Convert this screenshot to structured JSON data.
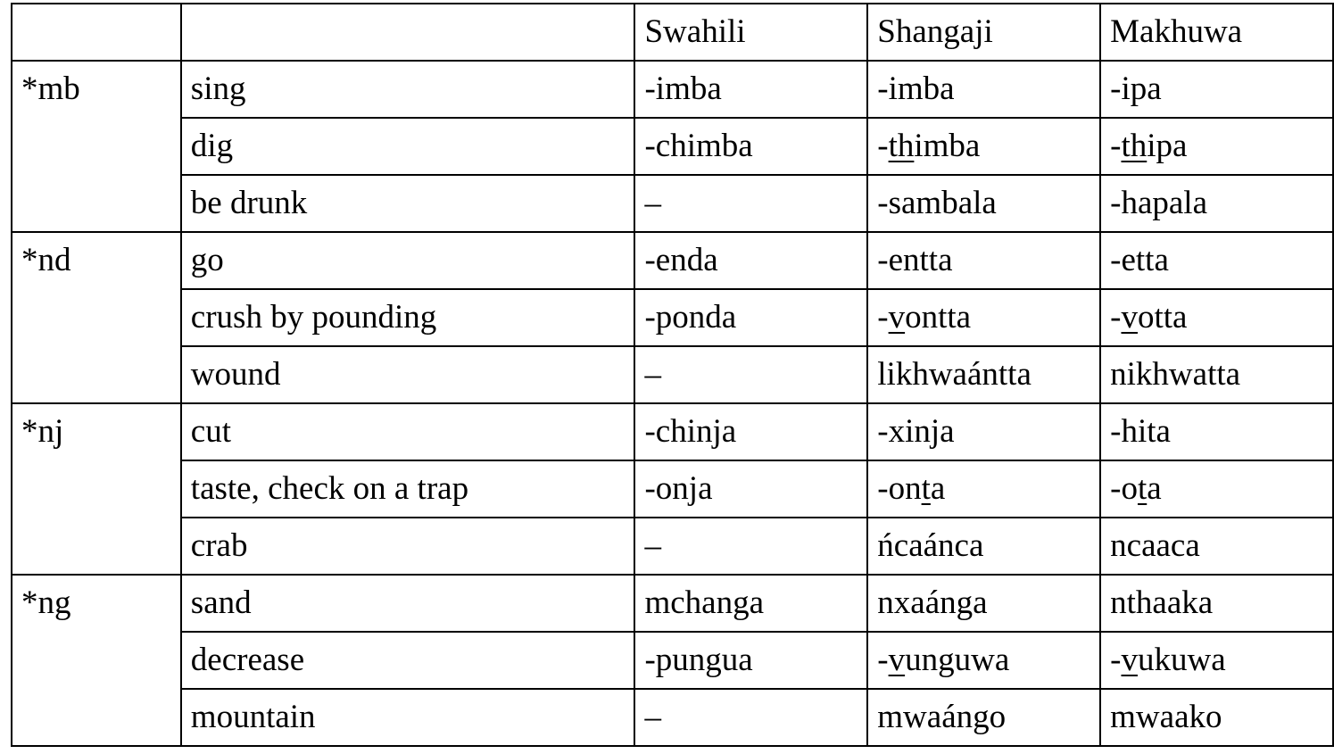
{
  "header": [
    "",
    "",
    "Swahili",
    "Shangaji",
    "Makhuwa"
  ],
  "groups": [
    {
      "proto": "*mb",
      "rows": [
        {
          "gloss": "sing",
          "cells": [
            [
              {
                "t": "-imba"
              }
            ],
            [
              {
                "t": "-imba"
              }
            ],
            [
              {
                "t": "-ipa"
              }
            ]
          ]
        },
        {
          "gloss": "dig",
          "cells": [
            [
              {
                "t": "-chimba"
              }
            ],
            [
              {
                "t": "-"
              },
              {
                "t": "th",
                "u": true
              },
              {
                "t": "imba"
              }
            ],
            [
              {
                "t": "-"
              },
              {
                "t": "th",
                "u": true
              },
              {
                "t": "ipa"
              }
            ]
          ]
        },
        {
          "gloss": "be drunk",
          "cells": [
            [
              {
                "t": "–"
              }
            ],
            [
              {
                "t": "-sambala"
              }
            ],
            [
              {
                "t": "-hapala"
              }
            ]
          ]
        }
      ]
    },
    {
      "proto": "*nd",
      "rows": [
        {
          "gloss": "go",
          "cells": [
            [
              {
                "t": "-enda"
              }
            ],
            [
              {
                "t": "-entta"
              }
            ],
            [
              {
                "t": "-etta"
              }
            ]
          ]
        },
        {
          "gloss": "crush by pounding",
          "cells": [
            [
              {
                "t": "-ponda"
              }
            ],
            [
              {
                "t": "-"
              },
              {
                "t": "v",
                "u": true
              },
              {
                "t": "ontta"
              }
            ],
            [
              {
                "t": "-"
              },
              {
                "t": "v",
                "u": true
              },
              {
                "t": "otta"
              }
            ]
          ]
        },
        {
          "gloss": "wound",
          "cells": [
            [
              {
                "t": "–"
              }
            ],
            [
              {
                "t": "likhwaántta"
              }
            ],
            [
              {
                "t": "nikhwatta"
              }
            ]
          ]
        }
      ]
    },
    {
      "proto": "*nj",
      "rows": [
        {
          "gloss": "cut",
          "cells": [
            [
              {
                "t": "-chinja"
              }
            ],
            [
              {
                "t": "-xinja"
              }
            ],
            [
              {
                "t": "-hita"
              }
            ]
          ]
        },
        {
          "gloss": "taste, check on a trap",
          "cells": [
            [
              {
                "t": "-onja"
              }
            ],
            [
              {
                "t": "-on"
              },
              {
                "t": "t",
                "u": true
              },
              {
                "t": "a"
              }
            ],
            [
              {
                "t": "-o"
              },
              {
                "t": "t",
                "u": true
              },
              {
                "t": "a"
              }
            ]
          ]
        },
        {
          "gloss": "crab",
          "cells": [
            [
              {
                "t": "–"
              }
            ],
            [
              {
                "t": "ńcaánca"
              }
            ],
            [
              {
                "t": "ncaaca"
              }
            ]
          ]
        }
      ]
    },
    {
      "proto": "*ng",
      "rows": [
        {
          "gloss": "sand",
          "cells": [
            [
              {
                "t": "mchanga"
              }
            ],
            [
              {
                "t": "nxaánga"
              }
            ],
            [
              {
                "t": "nthaaka"
              }
            ]
          ]
        },
        {
          "gloss": "decrease",
          "cells": [
            [
              {
                "t": "-pungua"
              }
            ],
            [
              {
                "t": "-"
              },
              {
                "t": "v",
                "u": true
              },
              {
                "t": "unguwa"
              }
            ],
            [
              {
                "t": "-"
              },
              {
                "t": "v",
                "u": true
              },
              {
                "t": "ukuwa"
              }
            ]
          ]
        },
        {
          "gloss": "mountain",
          "cells": [
            [
              {
                "t": "–"
              }
            ],
            [
              {
                "t": "mwaángo"
              }
            ],
            [
              {
                "t": "mwaako"
              }
            ]
          ]
        }
      ]
    }
  ]
}
